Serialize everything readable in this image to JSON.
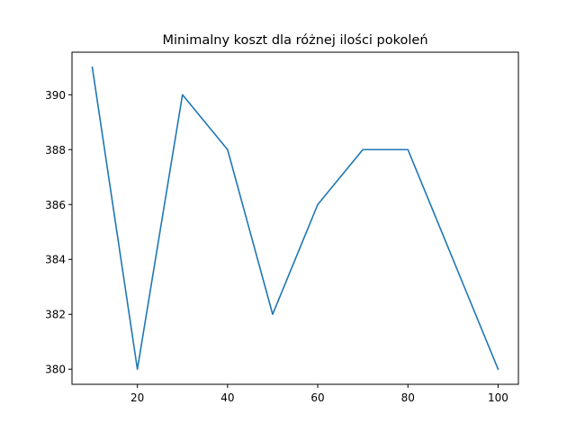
{
  "chart_data": {
    "type": "line",
    "title": "Minimalny koszt dla różnej ilości pokoleń",
    "xlabel": "",
    "ylabel": "",
    "x": [
      10,
      20,
      30,
      40,
      50,
      60,
      70,
      80,
      90,
      100
    ],
    "series": [
      {
        "values": [
          391,
          380,
          390,
          388,
          382,
          386,
          388,
          388,
          384,
          380
        ],
        "color": "#1f77b4"
      }
    ],
    "xlim": [
      5.5,
      104.5
    ],
    "ylim": [
      379.45,
      391.55
    ],
    "xticks": [
      20,
      40,
      60,
      80,
      100
    ],
    "yticks": [
      380,
      382,
      384,
      386,
      388,
      390
    ],
    "grid": false,
    "legend": "none"
  }
}
